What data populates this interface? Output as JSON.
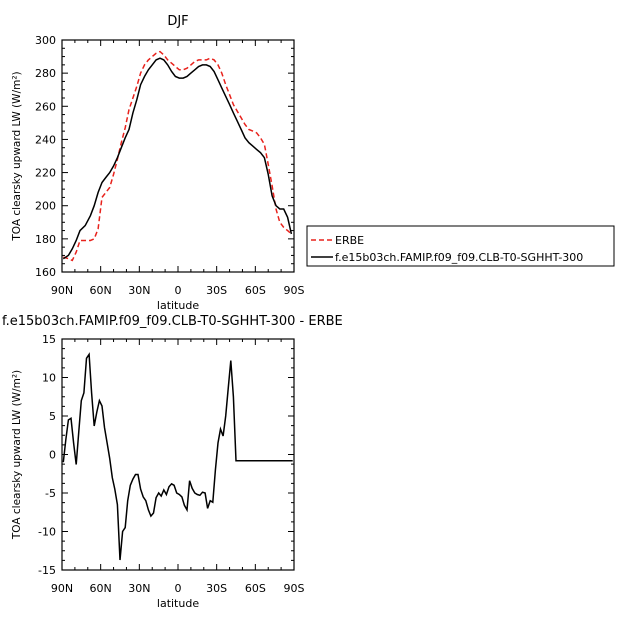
{
  "chart_data": [
    {
      "type": "line",
      "title": "DJF",
      "xlabel": "latitude",
      "ylabel": "TOA clearsky upward LW (W/m²)",
      "xlim": [
        -90,
        90
      ],
      "ylim": [
        160,
        300
      ],
      "x_ticks": [
        -90,
        -60,
        -30,
        0,
        30,
        60,
        90
      ],
      "x_tick_labels": [
        "90N",
        "60N",
        "30N",
        "0",
        "30S",
        "60S",
        "90S"
      ],
      "y_ticks": [
        160,
        180,
        200,
        220,
        240,
        260,
        280,
        300
      ],
      "grid": false,
      "legend_position": "right",
      "series": [
        {
          "name": "ERBE",
          "color": "#e8221c",
          "dash": true,
          "x": [
            -89,
            -85,
            -82,
            -79,
            -76,
            -72,
            -68,
            -65,
            -62,
            -59,
            -56,
            -53,
            -50,
            -47,
            -44,
            -41,
            -38,
            -35,
            -32,
            -29,
            -26,
            -23,
            -20,
            -17,
            -14,
            -11,
            -8,
            -5,
            -2,
            1,
            4,
            7,
            10,
            13,
            16,
            19,
            22,
            25,
            28,
            31,
            34,
            37,
            40,
            43,
            46,
            49,
            52,
            55,
            58,
            61,
            64,
            67,
            70,
            73,
            76,
            79,
            82,
            85,
            88
          ],
          "values": [
            169,
            168,
            167,
            172,
            179,
            179,
            179,
            180,
            186,
            205,
            208,
            211,
            219,
            228,
            238,
            247,
            258,
            265,
            272,
            280,
            285,
            288,
            290,
            292,
            293,
            291,
            288,
            286,
            284,
            282,
            282,
            283,
            285,
            287,
            288,
            288,
            288,
            289,
            288,
            285,
            280,
            273,
            267,
            261,
            257,
            253,
            249,
            246,
            245,
            244,
            241,
            237,
            225,
            212,
            198,
            190,
            187,
            185,
            183
          ]
        },
        {
          "name": "f.e15b03ch.FAMIP.f09_f09.CLB-T0-SGHHT-300",
          "color": "#000000",
          "dash": false,
          "x": [
            -89,
            -85,
            -82,
            -79,
            -76,
            -72,
            -68,
            -65,
            -62,
            -59,
            -56,
            -53,
            -50,
            -47,
            -44,
            -41,
            -38,
            -35,
            -32,
            -29,
            -26,
            -23,
            -20,
            -17,
            -14,
            -11,
            -8,
            -5,
            -2,
            1,
            4,
            7,
            10,
            13,
            16,
            19,
            22,
            25,
            28,
            31,
            34,
            37,
            40,
            43,
            46,
            49,
            52,
            55,
            58,
            61,
            64,
            67,
            70,
            73,
            76,
            79,
            82,
            85,
            88
          ],
          "values": [
            168,
            170,
            174,
            179,
            185,
            188,
            194,
            200,
            208,
            214,
            217,
            220,
            224,
            229,
            235,
            241,
            246,
            256,
            264,
            273,
            278,
            282,
            285,
            288,
            289,
            288,
            285,
            281,
            278,
            277,
            277,
            278,
            280,
            282,
            284,
            285,
            285,
            284,
            281,
            276,
            271,
            266,
            261,
            256,
            251,
            246,
            241,
            238,
            236,
            234,
            232,
            229,
            219,
            206,
            200,
            198,
            198,
            193,
            183
          ]
        }
      ]
    },
    {
      "type": "line",
      "title": "f.e15b03ch.FAMIP.f09_f09.CLB-T0-SGHHT-300 - ERBE",
      "xlabel": "latitude",
      "ylabel": "TOA clearsky upward LW (W/m²)",
      "xlim": [
        -90,
        90
      ],
      "ylim": [
        -15,
        15
      ],
      "x_ticks": [
        -90,
        -60,
        -30,
        0,
        30,
        60,
        90
      ],
      "x_tick_labels": [
        "90N",
        "60N",
        "30N",
        "0",
        "30S",
        "60S",
        "90S"
      ],
      "y_ticks": [
        -15,
        -10,
        -5,
        0,
        5,
        10,
        15
      ],
      "grid": false,
      "series": [
        {
          "color": "#000000",
          "x": [
            -89,
            -87,
            -85,
            -83,
            -81,
            -79,
            -77,
            -75,
            -73,
            -71,
            -69,
            -67,
            -65,
            -63,
            -61,
            -59,
            -57,
            -55,
            -53,
            -51,
            -49,
            -47,
            -45,
            -43,
            -41,
            -39,
            -37,
            -35,
            -33,
            -31,
            -29,
            -27,
            -25,
            -23,
            -21,
            -19,
            -17,
            -15,
            -13,
            -11,
            -9,
            -7,
            -5,
            -3,
            -1,
            1,
            3,
            5,
            7,
            9,
            11,
            13,
            15,
            17,
            19,
            21,
            23,
            25,
            27,
            29,
            31,
            33,
            35,
            37,
            39,
            41,
            43,
            45,
            47,
            49,
            51,
            53,
            55,
            57,
            59,
            61,
            63,
            65,
            67,
            69,
            71,
            73,
            75,
            77,
            79,
            81,
            83,
            85,
            87,
            89
          ],
          "values": [
            -1,
            2,
            4.5,
            4.7,
            1.5,
            -1.3,
            3,
            7,
            8,
            12.5,
            13,
            8,
            3.7,
            5.5,
            7,
            6.3,
            3.5,
            1.5,
            -0.5,
            -3,
            -4.5,
            -6.5,
            -13.7,
            -10,
            -9.5,
            -6,
            -4,
            -3.2,
            -2.6,
            -2.6,
            -4.5,
            -5.5,
            -6,
            -7.2,
            -8,
            -7.6,
            -5.6,
            -5,
            -5.4,
            -4.6,
            -5.2,
            -4.2,
            -3.8,
            -4,
            -5,
            -5.2,
            -5.5,
            -6.6,
            -7.2,
            -3.4,
            -4.4,
            -5,
            -5.2,
            -5.3,
            -4.9,
            -5,
            -7,
            -6,
            -6.2,
            -2,
            1.5,
            3.3,
            2.4,
            5,
            8.7,
            12.2,
            7.5,
            -0.8,
            -0.8,
            -0.8,
            -0.8,
            -0.8,
            -0.8,
            -0.8,
            -0.8,
            -0.8,
            -0.8,
            -0.8,
            -0.8,
            -0.8,
            -0.8,
            -0.8,
            -0.8,
            -0.8,
            -0.8,
            -0.8,
            -0.8,
            -0.8,
            -0.8,
            -0.8
          ]
        }
      ]
    }
  ]
}
